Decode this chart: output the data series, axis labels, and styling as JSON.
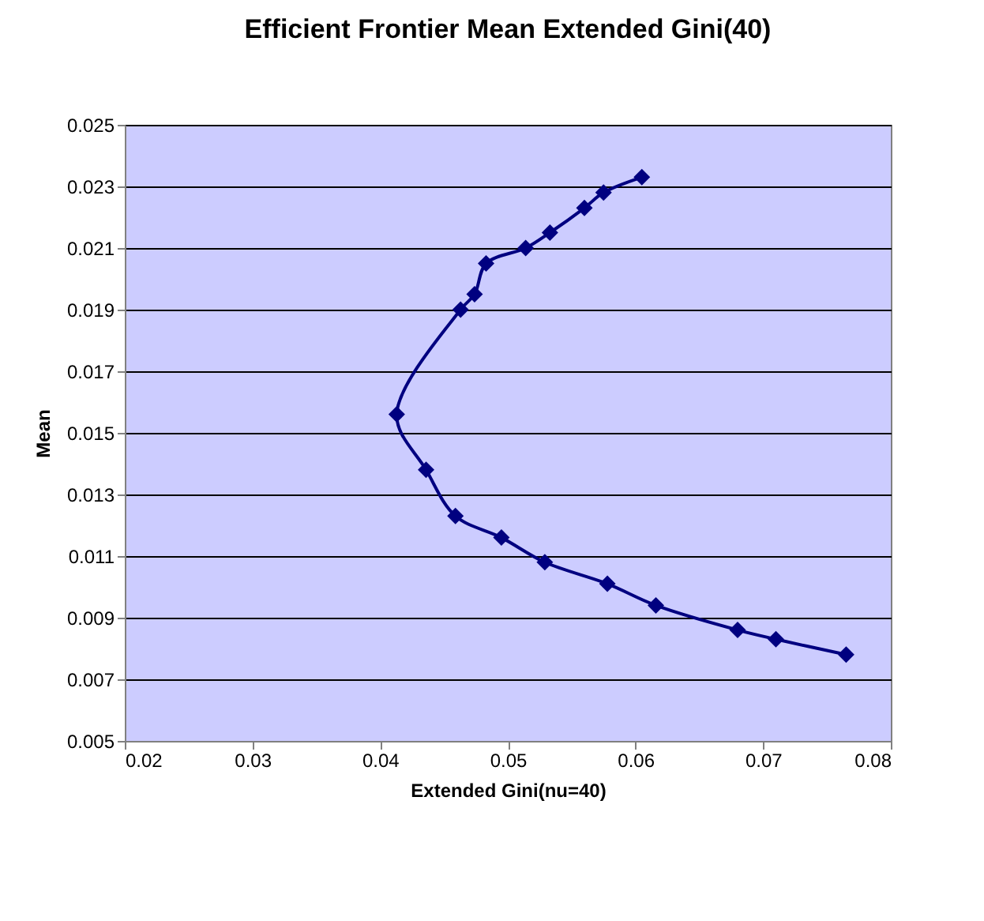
{
  "chart_data": {
    "type": "line",
    "title": "Efficient Frontier Mean Extended Gini(40)",
    "xlabel": "Extended Gini(nu=40)",
    "ylabel": "Mean",
    "x": [
      0.0605,
      0.0575,
      0.056,
      0.0533,
      0.0514,
      0.0483,
      0.0474,
      0.0463,
      0.0413,
      0.0436,
      0.0459,
      0.0495,
      0.0529,
      0.0578,
      0.0616,
      0.068,
      0.071,
      0.0765
    ],
    "series": [
      {
        "color": "#000080",
        "values": [
          0.0233,
          0.0228,
          0.0223,
          0.0215,
          0.021,
          0.0205,
          0.0195,
          0.019,
          0.0156,
          0.0138,
          0.0123,
          0.0116,
          0.0108,
          0.0101,
          0.0094,
          0.0086,
          0.0083,
          0.0078
        ]
      }
    ],
    "xlim": [
      0.02,
      0.08
    ],
    "xticks": [
      0.02,
      0.03,
      0.04,
      0.05,
      0.06,
      0.07,
      0.08
    ],
    "ylim": [
      0.005,
      0.025
    ],
    "yticks": [
      0.005,
      0.007,
      0.009,
      0.011,
      0.013,
      0.015,
      0.017,
      0.019,
      0.021,
      0.023,
      0.025
    ],
    "grid": "y",
    "marker": "diamond",
    "line_style": "solid"
  }
}
